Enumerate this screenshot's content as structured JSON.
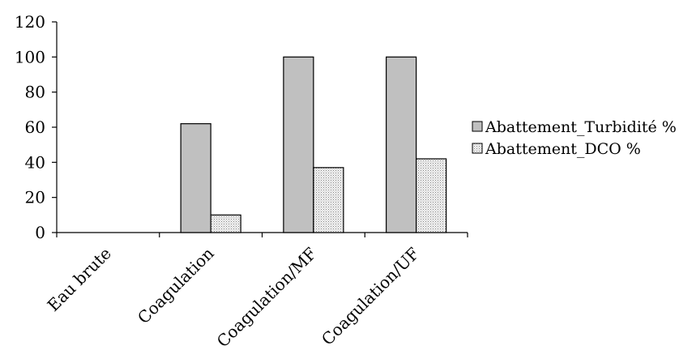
{
  "chart_data": {
    "type": "bar",
    "title": "",
    "xlabel": "",
    "ylabel": "",
    "ylim": [
      0,
      120
    ],
    "yticks": [
      0,
      20,
      40,
      60,
      80,
      100,
      120
    ],
    "grid": false,
    "legend_position": "right",
    "categories": [
      "Eau brute",
      "Coagulation",
      "Coagulation/MF",
      "Coagulation/UF"
    ],
    "series": [
      {
        "name": "Abattement_Turbidité %",
        "values": [
          0,
          62,
          100,
          100
        ],
        "color": "#c0c0c0",
        "pattern": "solid"
      },
      {
        "name": "Abattement_DCO %",
        "values": [
          0,
          10,
          37,
          42
        ],
        "color": "#e8e8e8",
        "pattern": "dotted"
      }
    ]
  }
}
